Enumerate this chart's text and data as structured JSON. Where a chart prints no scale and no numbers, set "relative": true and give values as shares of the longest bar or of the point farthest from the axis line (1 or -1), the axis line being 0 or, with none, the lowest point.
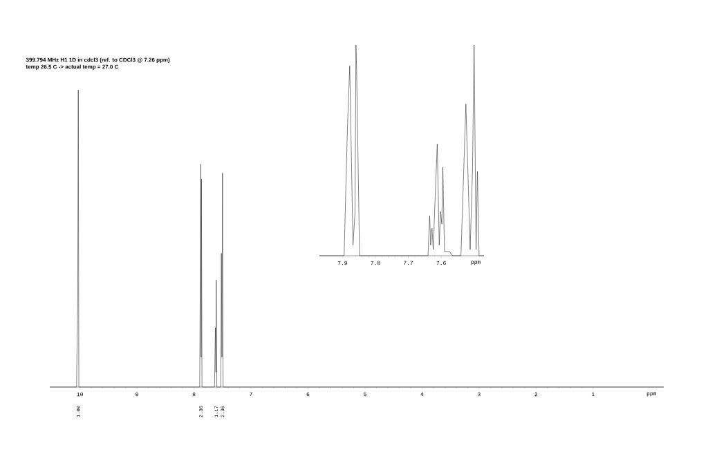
{
  "chart_data": [
    {
      "type": "line",
      "title": "399.794 MHz H1 1D in cdcl3 (ref. to CDCl3 @ 7.26 ppm)",
      "subtitle": "temp 26.5 C -> actual temp = 27.0 C",
      "xlabel": "ppm",
      "relative": true,
      "color": "#2b2b2b",
      "x": [
        10.53,
        10.06,
        10.04,
        10.03,
        10.02,
        7.9,
        7.88,
        7.875,
        7.87,
        7.86,
        7.64,
        7.625,
        7.615,
        7.61,
        7.6,
        7.53,
        7.52,
        7.51,
        7.5,
        7.49,
        -0.24
      ],
      "values": [
        0,
        0,
        0.3,
        1.0,
        0,
        0,
        0.75,
        0.1,
        0.7,
        0,
        0,
        0.2,
        0.05,
        0.36,
        0,
        0,
        0.45,
        0.1,
        0.72,
        0,
        0
      ],
      "xlim": [
        10.53,
        -0.24
      ],
      "xticks": [
        10,
        9,
        8,
        7,
        6,
        5,
        4,
        3,
        2,
        1
      ],
      "annotations": [
        "1.00",
        "2.36",
        "1.17",
        "2.36"
      ]
    },
    {
      "type": "line",
      "xlabel": "ppm",
      "relative": true,
      "color": "#2b2b2b",
      "x": [
        7.97,
        7.895,
        7.885,
        7.878,
        7.868,
        7.862,
        7.859,
        7.857,
        7.848,
        7.64,
        7.637,
        7.635,
        7.632,
        7.628,
        7.624,
        7.62,
        7.612,
        7.606,
        7.602,
        7.598,
        7.595,
        7.59,
        7.575,
        7.565,
        7.54,
        7.525,
        7.512,
        7.505,
        7.5,
        7.494,
        7.49,
        7.485,
        7.47
      ],
      "values": [
        0,
        0,
        0.6,
        0.9,
        0.05,
        0.2,
        1.0,
        0.88,
        0,
        0,
        0.12,
        0.19,
        0.05,
        0.13,
        0.03,
        0.21,
        0.53,
        0.05,
        0.21,
        0.15,
        0.42,
        0.02,
        0.02,
        0,
        0,
        0.72,
        0.03,
        0.4,
        1.0,
        0.03,
        0.4,
        0,
        0
      ],
      "xlim": [
        7.97,
        7.47
      ],
      "xticks": [
        7.9,
        7.8,
        7.7,
        7.6
      ]
    }
  ]
}
